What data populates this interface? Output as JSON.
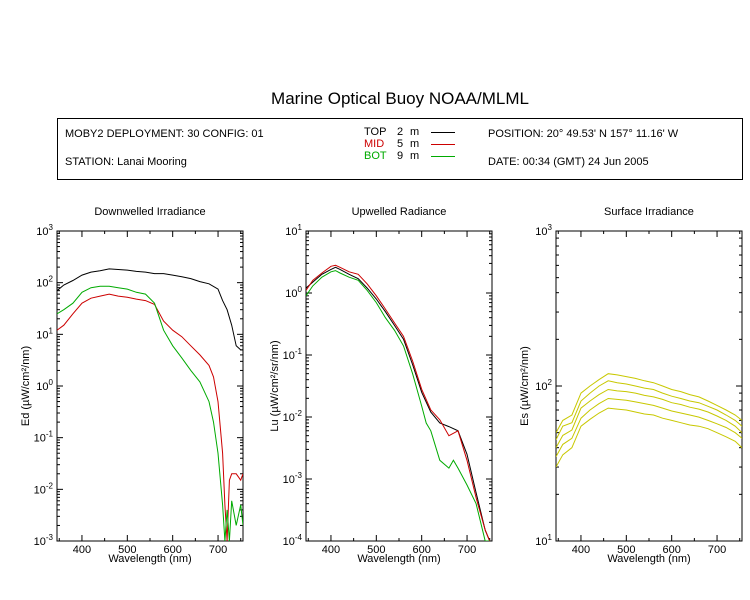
{
  "header": {
    "title": "Marine Optical Buoy NOAA/MLML",
    "deployment": "MOBY2 DEPLOYMENT: 30 CONFIG: 01",
    "station": "STATION: Lanai Mooring",
    "position": "POSITION: 20° 49.53' N   157° 11.16' W",
    "date": "DATE: 00:34 (GMT) 24 Jun 2005",
    "legend": [
      {
        "name": "TOP",
        "depth": "2",
        "unit": "m",
        "color": "#000000"
      },
      {
        "name": "MID",
        "depth": "5",
        "unit": "m",
        "color": "#cc0000"
      },
      {
        "name": "BOT",
        "depth": "9",
        "unit": "m",
        "color": "#00aa00"
      }
    ]
  },
  "chart_data": [
    {
      "type": "line",
      "title": "Downwelled Irradiance",
      "xlabel": "Wavelength (nm)",
      "ylabel": "Ed  (µW/cm²/nm)",
      "yscale": "log",
      "xlim": [
        345,
        755
      ],
      "ylim": [
        0.001,
        1000
      ],
      "xticks": [
        "400",
        "500",
        "600",
        "700"
      ],
      "yticks": [
        {
          "base": "10",
          "exp": "-3"
        },
        {
          "base": "10",
          "exp": "-2"
        },
        {
          "base": "10",
          "exp": "-1"
        },
        {
          "base": "10",
          "exp": "0"
        },
        {
          "base": "10",
          "exp": "1"
        },
        {
          "base": "10",
          "exp": "2"
        },
        {
          "base": "10",
          "exp": "3"
        }
      ],
      "series": [
        {
          "name": "TOP",
          "color": "#000000",
          "x": [
            345,
            360,
            380,
            400,
            420,
            440,
            460,
            480,
            500,
            520,
            540,
            560,
            580,
            600,
            620,
            640,
            660,
            680,
            700,
            710,
            720,
            730,
            740,
            750,
            755
          ],
          "values": [
            70,
            90,
            110,
            140,
            160,
            170,
            185,
            180,
            175,
            165,
            160,
            150,
            150,
            140,
            130,
            120,
            105,
            95,
            75,
            45,
            30,
            15,
            6,
            5,
            5
          ]
        },
        {
          "name": "MID",
          "color": "#cc0000",
          "x": [
            345,
            360,
            380,
            400,
            420,
            440,
            460,
            480,
            500,
            520,
            540,
            560,
            580,
            600,
            620,
            640,
            660,
            680,
            690,
            700,
            710,
            715,
            720,
            725,
            730,
            740,
            750,
            755
          ],
          "values": [
            12,
            15,
            25,
            40,
            50,
            55,
            60,
            55,
            52,
            48,
            45,
            38,
            18,
            12,
            9,
            6,
            4,
            2.5,
            1.5,
            0.5,
            0.05,
            0.005,
            0.001,
            0.015,
            0.02,
            0.02,
            0.015,
            0.02
          ]
        },
        {
          "name": "BOT",
          "color": "#00aa00",
          "x": [
            345,
            360,
            380,
            400,
            420,
            440,
            460,
            480,
            500,
            520,
            540,
            560,
            580,
            600,
            620,
            640,
            660,
            680,
            690,
            700,
            710,
            715,
            720,
            725,
            730,
            740,
            750,
            755
          ],
          "values": [
            25,
            30,
            40,
            65,
            80,
            85,
            85,
            80,
            75,
            65,
            60,
            40,
            12,
            6,
            3.5,
            2,
            1.2,
            0.5,
            0.2,
            0.05,
            0.005,
            0.001,
            0.004,
            0.001,
            0.006,
            0.002,
            0.005,
            0.002
          ]
        }
      ]
    },
    {
      "type": "line",
      "title": "Upwelled Radiance",
      "xlabel": "Wavelength (nm)",
      "ylabel": "Lu  (µW/cm²/sr/nm)",
      "yscale": "log",
      "xlim": [
        345,
        755
      ],
      "ylim": [
        0.0001,
        10
      ],
      "xticks": [
        "400",
        "500",
        "600",
        "700"
      ],
      "yticks": [
        {
          "base": "10",
          "exp": "-4"
        },
        {
          "base": "10",
          "exp": "-3"
        },
        {
          "base": "10",
          "exp": "-2"
        },
        {
          "base": "10",
          "exp": "-1"
        },
        {
          "base": "10",
          "exp": "0"
        },
        {
          "base": "10",
          "exp": "1"
        }
      ],
      "series": [
        {
          "name": "TOP",
          "color": "#000000",
          "x": [
            345,
            360,
            380,
            400,
            410,
            420,
            440,
            460,
            480,
            500,
            520,
            540,
            560,
            580,
            600,
            620,
            640,
            660,
            680,
            700,
            720,
            740,
            750
          ],
          "values": [
            1.2,
            1.5,
            2,
            2.4,
            2.6,
            2.4,
            2,
            1.7,
            1.2,
            0.8,
            0.5,
            0.3,
            0.18,
            0.07,
            0.025,
            0.012,
            0.008,
            0.007,
            0.006,
            0.0025,
            0.0006,
            0.00015,
            0.0001
          ]
        },
        {
          "name": "MID",
          "color": "#cc0000",
          "x": [
            345,
            360,
            380,
            400,
            410,
            420,
            440,
            460,
            480,
            500,
            520,
            540,
            560,
            580,
            600,
            620,
            640,
            660,
            680,
            700,
            720,
            740,
            750
          ],
          "values": [
            1.1,
            1.6,
            2.1,
            2.7,
            2.8,
            2.6,
            2.2,
            2,
            1.4,
            0.9,
            0.55,
            0.33,
            0.2,
            0.08,
            0.028,
            0.013,
            0.009,
            0.005,
            0.006,
            0.002,
            0.0005,
            0.00015,
            0.0001
          ]
        },
        {
          "name": "BOT",
          "color": "#00aa00",
          "x": [
            345,
            360,
            380,
            400,
            410,
            420,
            440,
            460,
            480,
            500,
            520,
            540,
            560,
            580,
            600,
            610,
            620,
            640,
            660,
            670,
            680,
            700,
            720,
            740,
            750
          ],
          "values": [
            0.9,
            1.3,
            1.8,
            2.2,
            2.3,
            2.1,
            1.8,
            1.6,
            1.1,
            0.7,
            0.4,
            0.25,
            0.14,
            0.05,
            0.015,
            0.008,
            0.006,
            0.002,
            0.0015,
            0.002,
            0.0015,
            0.0008,
            0.0004,
            0.0001,
            0.0001
          ]
        }
      ]
    },
    {
      "type": "line",
      "title": "Surface Irradiance",
      "xlabel": "Wavelength (nm)",
      "ylabel": "Es  (µW/cm²/nm)",
      "yscale": "log",
      "xlim": [
        345,
        755
      ],
      "ylim": [
        10,
        1000
      ],
      "xticks": [
        "400",
        "500",
        "600",
        "700"
      ],
      "yticks": [
        {
          "base": "10",
          "exp": "1"
        },
        {
          "base": "10",
          "exp": "2"
        },
        {
          "base": "10",
          "exp": "3"
        }
      ],
      "color": "#c8c800",
      "x": [
        345,
        360,
        380,
        400,
        420,
        440,
        460,
        480,
        500,
        520,
        540,
        560,
        580,
        600,
        620,
        640,
        660,
        680,
        700,
        720,
        740,
        755
      ],
      "series": [
        {
          "values": [
            50,
            60,
            65,
            90,
            100,
            110,
            120,
            118,
            115,
            112,
            108,
            105,
            100,
            95,
            92,
            88,
            85,
            80,
            75,
            70,
            65,
            60
          ]
        },
        {
          "values": [
            45,
            55,
            58,
            80,
            90,
            100,
            108,
            105,
            103,
            100,
            97,
            95,
            90,
            86,
            83,
            80,
            78,
            74,
            70,
            65,
            60,
            55
          ]
        },
        {
          "values": [
            40,
            48,
            52,
            72,
            80,
            88,
            95,
            93,
            92,
            90,
            87,
            85,
            82,
            78,
            76,
            73,
            71,
            68,
            64,
            60,
            55,
            50
          ]
        },
        {
          "values": [
            35,
            42,
            46,
            62,
            70,
            77,
            83,
            82,
            81,
            79,
            77,
            75,
            72,
            69,
            67,
            65,
            63,
            60,
            57,
            54,
            50,
            46
          ]
        },
        {
          "values": [
            30,
            36,
            40,
            55,
            61,
            67,
            72,
            71,
            70,
            68,
            66,
            65,
            62,
            60,
            58,
            56,
            55,
            53,
            50,
            47,
            44,
            40
          ]
        }
      ]
    }
  ]
}
